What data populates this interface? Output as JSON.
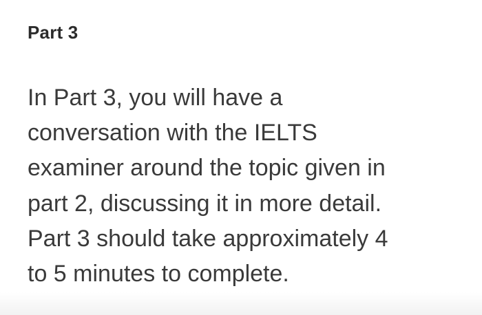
{
  "section": {
    "title": "Part 3",
    "lines": [
      "In Part 3, you will have a",
      "conversation with the IELTS",
      "examiner around the topic given in",
      "part 2, discussing it in more detail.",
      "Part 3 should take approximately 4",
      "to 5 minutes to complete."
    ]
  }
}
